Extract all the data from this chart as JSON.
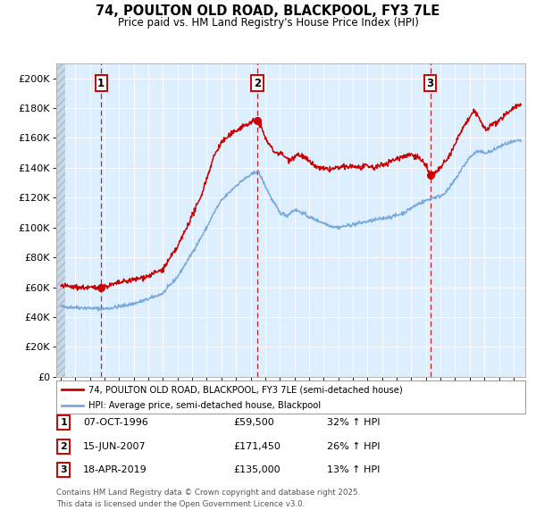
{
  "title": "74, POULTON OLD ROAD, BLACKPOOL, FY3 7LE",
  "subtitle": "Price paid vs. HM Land Registry's House Price Index (HPI)",
  "legend_line1": "74, POULTON OLD ROAD, BLACKPOOL, FY3 7LE (semi-detached house)",
  "legend_line2": "HPI: Average price, semi-detached house, Blackpool",
  "footnote_line1": "Contains HM Land Registry data © Crown copyright and database right 2025.",
  "footnote_line2": "This data is licensed under the Open Government Licence v3.0.",
  "transactions": [
    {
      "num": 1,
      "date": "07-OCT-1996",
      "price": 59500,
      "pct": "32% ↑ HPI",
      "x": 1996.77
    },
    {
      "num": 2,
      "date": "15-JUN-2007",
      "price": 171450,
      "pct": "26% ↑ HPI",
      "x": 2007.45
    },
    {
      "num": 3,
      "date": "18-APR-2019",
      "price": 135000,
      "pct": "13% ↑ HPI",
      "x": 2019.29
    }
  ],
  "red_color": "#cc0000",
  "blue_color": "#7aaadd",
  "background_color": "#ddeeff",
  "grid_color": "#ffffff",
  "ylim": [
    0,
    210000
  ],
  "xlim_start": 1993.7,
  "xlim_end": 2025.8,
  "ytick_step": 20000,
  "hpi_anchors": [
    [
      1994.0,
      47000
    ],
    [
      1995.0,
      46500
    ],
    [
      1996.0,
      46000
    ],
    [
      1997.0,
      45500
    ],
    [
      1998.0,
      47000
    ],
    [
      1999.0,
      49000
    ],
    [
      2000.0,
      52000
    ],
    [
      2001.0,
      56000
    ],
    [
      2002.0,
      67000
    ],
    [
      2003.0,
      83000
    ],
    [
      2004.0,
      100000
    ],
    [
      2004.5,
      110000
    ],
    [
      2005.0,
      118000
    ],
    [
      2005.5,
      123000
    ],
    [
      2006.0,
      128000
    ],
    [
      2006.5,
      132000
    ],
    [
      2007.0,
      135000
    ],
    [
      2007.5,
      138000
    ],
    [
      2008.0,
      128000
    ],
    [
      2008.5,
      118000
    ],
    [
      2009.0,
      110000
    ],
    [
      2009.5,
      108000
    ],
    [
      2010.0,
      112000
    ],
    [
      2010.5,
      110000
    ],
    [
      2011.0,
      107000
    ],
    [
      2011.5,
      105000
    ],
    [
      2012.0,
      103000
    ],
    [
      2012.5,
      101000
    ],
    [
      2013.0,
      100000
    ],
    [
      2013.5,
      101000
    ],
    [
      2014.0,
      102000
    ],
    [
      2014.5,
      103000
    ],
    [
      2015.0,
      104000
    ],
    [
      2015.5,
      105000
    ],
    [
      2016.0,
      106000
    ],
    [
      2016.5,
      107000
    ],
    [
      2017.0,
      108000
    ],
    [
      2017.5,
      110000
    ],
    [
      2018.0,
      113000
    ],
    [
      2018.5,
      116000
    ],
    [
      2019.0,
      118000
    ],
    [
      2019.5,
      120000
    ],
    [
      2020.0,
      121000
    ],
    [
      2020.5,
      125000
    ],
    [
      2021.0,
      132000
    ],
    [
      2021.5,
      140000
    ],
    [
      2022.0,
      147000
    ],
    [
      2022.5,
      151000
    ],
    [
      2023.0,
      150000
    ],
    [
      2023.5,
      151000
    ],
    [
      2024.0,
      154000
    ],
    [
      2024.5,
      156000
    ],
    [
      2025.3,
      158000
    ]
  ],
  "red_anchors": [
    [
      1994.0,
      61000
    ],
    [
      1994.5,
      60500
    ],
    [
      1995.0,
      60000
    ],
    [
      1995.5,
      59800
    ],
    [
      1996.0,
      59600
    ],
    [
      1996.77,
      59500
    ],
    [
      1997.0,
      60500
    ],
    [
      1997.5,
      61500
    ],
    [
      1998.0,
      63000
    ],
    [
      1999.0,
      65000
    ],
    [
      2000.0,
      67500
    ],
    [
      2001.0,
      72000
    ],
    [
      2002.0,
      87000
    ],
    [
      2003.0,
      108000
    ],
    [
      2003.5,
      118000
    ],
    [
      2004.0,
      133000
    ],
    [
      2004.5,
      148000
    ],
    [
      2005.0,
      157000
    ],
    [
      2005.5,
      161000
    ],
    [
      2006.0,
      165000
    ],
    [
      2006.5,
      168000
    ],
    [
      2007.0,
      170000
    ],
    [
      2007.2,
      171200
    ],
    [
      2007.45,
      171450
    ],
    [
      2007.7,
      168000
    ],
    [
      2008.0,
      160000
    ],
    [
      2008.3,
      155000
    ],
    [
      2008.7,
      150000
    ],
    [
      2009.0,
      150000
    ],
    [
      2009.3,
      148000
    ],
    [
      2009.6,
      145000
    ],
    [
      2009.9,
      147000
    ],
    [
      2010.2,
      149000
    ],
    [
      2010.5,
      148000
    ],
    [
      2010.8,
      146000
    ],
    [
      2011.0,
      144000
    ],
    [
      2011.3,
      142000
    ],
    [
      2011.6,
      140000
    ],
    [
      2012.0,
      139000
    ],
    [
      2012.5,
      139000
    ],
    [
      2013.0,
      140000
    ],
    [
      2013.5,
      140500
    ],
    [
      2014.0,
      141000
    ],
    [
      2014.5,
      140000
    ],
    [
      2015.0,
      141000
    ],
    [
      2015.5,
      140000
    ],
    [
      2016.0,
      142000
    ],
    [
      2016.5,
      144000
    ],
    [
      2017.0,
      146000
    ],
    [
      2017.5,
      148000
    ],
    [
      2018.0,
      149000
    ],
    [
      2018.3,
      148000
    ],
    [
      2018.6,
      146000
    ],
    [
      2018.9,
      143000
    ],
    [
      2019.0,
      141000
    ],
    [
      2019.29,
      135000
    ],
    [
      2019.5,
      136000
    ],
    [
      2019.8,
      138000
    ],
    [
      2020.0,
      140000
    ],
    [
      2020.5,
      146000
    ],
    [
      2021.0,
      156000
    ],
    [
      2021.3,
      162000
    ],
    [
      2021.6,
      168000
    ],
    [
      2021.9,
      172000
    ],
    [
      2022.1,
      175000
    ],
    [
      2022.3,
      178000
    ],
    [
      2022.5,
      176000
    ],
    [
      2022.7,
      172000
    ],
    [
      2022.9,
      168000
    ],
    [
      2023.1,
      165000
    ],
    [
      2023.4,
      168000
    ],
    [
      2023.7,
      170000
    ],
    [
      2024.0,
      171000
    ],
    [
      2024.3,
      174000
    ],
    [
      2024.6,
      177000
    ],
    [
      2024.9,
      180000
    ],
    [
      2025.3,
      182000
    ]
  ]
}
